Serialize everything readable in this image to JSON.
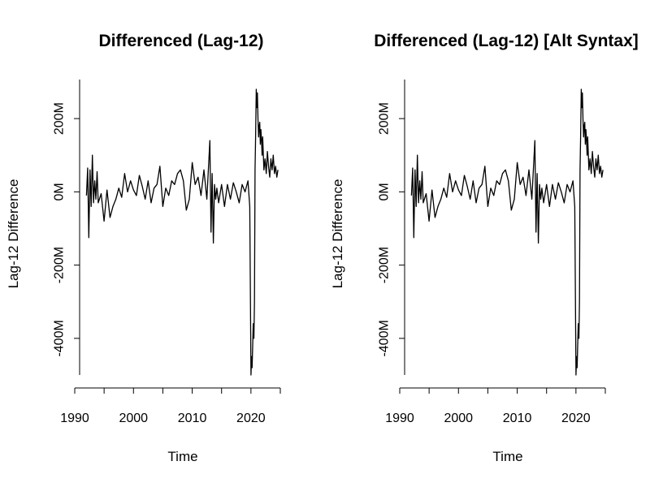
{
  "chart_data": [
    {
      "type": "line",
      "title": "Differenced (Lag-12)",
      "xlabel": "Time",
      "ylabel": "Lag-12 Difference",
      "xlim": [
        1991.8,
        2025.0
      ],
      "ylim": [
        -500000000,
        280000000
      ],
      "xticks": [
        1990,
        1995,
        2000,
        2005,
        2010,
        2015,
        2020,
        2025
      ],
      "xtick_labels": [
        "1990",
        "",
        "2000",
        "",
        "2010",
        "",
        "2020",
        ""
      ],
      "yticks": [
        -400000000,
        -200000000,
        0,
        200000000
      ],
      "ytick_labels": [
        "-400M",
        "-200M",
        "0M",
        "200M"
      ],
      "grid": false,
      "series": [
        {
          "x": [
            1992.0,
            1992.2,
            1992.4,
            1992.6,
            1992.8,
            1993.0,
            1993.2,
            1993.4,
            1993.6,
            1993.8,
            1994.0,
            1994.5,
            1995.0,
            1995.5,
            1996.0,
            1996.5,
            1997.0,
            1997.5,
            1998.0,
            1998.5,
            1999.0,
            1999.5,
            2000.0,
            2000.5,
            2001.0,
            2001.5,
            2002.0,
            2002.5,
            2003.0,
            2003.5,
            2004.0,
            2004.5,
            2005.0,
            2005.5,
            2006.0,
            2006.5,
            2007.0,
            2007.5,
            2008.0,
            2008.5,
            2009.0,
            2009.5,
            2010.0,
            2010.5,
            2011.0,
            2011.5,
            2012.0,
            2012.5,
            2013.0,
            2013.2,
            2013.4,
            2013.6,
            2013.8,
            2014.0,
            2014.2,
            2014.5,
            2015.0,
            2015.5,
            2016.0,
            2016.5,
            2017.0,
            2017.5,
            2018.0,
            2018.5,
            2019.0,
            2019.5,
            2019.8,
            2020.0,
            2020.1,
            2020.2,
            2020.3,
            2020.4,
            2020.5,
            2020.6,
            2020.7,
            2020.8,
            2020.9,
            2021.0,
            2021.1,
            2021.2,
            2021.3,
            2021.4,
            2021.5,
            2021.6,
            2021.7,
            2021.8,
            2021.9,
            2022.0,
            2022.2,
            2022.4,
            2022.6,
            2022.8,
            2023.0,
            2023.2,
            2023.4,
            2023.6,
            2023.8,
            2024.0,
            2024.2,
            2024.4,
            2024.6
          ],
          "y": [
            -10000000,
            65000000,
            -125000000,
            60000000,
            -40000000,
            100000000,
            -30000000,
            30000000,
            -20000000,
            55000000,
            -30000000,
            -5000000,
            -80000000,
            5000000,
            -70000000,
            -40000000,
            -20000000,
            10000000,
            -15000000,
            50000000,
            0,
            30000000,
            5000000,
            -10000000,
            45000000,
            15000000,
            -20000000,
            30000000,
            -30000000,
            10000000,
            20000000,
            70000000,
            -40000000,
            10000000,
            -10000000,
            30000000,
            20000000,
            50000000,
            60000000,
            30000000,
            -50000000,
            -20000000,
            80000000,
            20000000,
            40000000,
            -10000000,
            60000000,
            -20000000,
            140000000,
            -110000000,
            50000000,
            -140000000,
            20000000,
            -20000000,
            10000000,
            -30000000,
            20000000,
            -40000000,
            20000000,
            -20000000,
            25000000,
            0,
            -30000000,
            20000000,
            0,
            30000000,
            -40000000,
            -500000000,
            -450000000,
            -480000000,
            -420000000,
            -360000000,
            -400000000,
            -300000000,
            60000000,
            150000000,
            280000000,
            230000000,
            270000000,
            200000000,
            150000000,
            180000000,
            190000000,
            130000000,
            170000000,
            140000000,
            100000000,
            150000000,
            60000000,
            90000000,
            50000000,
            110000000,
            70000000,
            40000000,
            90000000,
            60000000,
            100000000,
            50000000,
            70000000,
            40000000,
            60000000
          ]
        }
      ]
    },
    {
      "type": "line",
      "title": "Differenced (Lag-12) [Alt Syntax]",
      "xlabel": "Time",
      "ylabel": "Lag-12 Difference",
      "xlim": [
        1991.8,
        2025.0
      ],
      "ylim": [
        -500000000,
        280000000
      ],
      "xticks": [
        1990,
        1995,
        2000,
        2005,
        2010,
        2015,
        2020,
        2025
      ],
      "xtick_labels": [
        "1990",
        "",
        "2000",
        "",
        "2010",
        "",
        "2020",
        ""
      ],
      "yticks": [
        -400000000,
        -200000000,
        0,
        200000000
      ],
      "ytick_labels": [
        "-400M",
        "-200M",
        "0M",
        "200M"
      ],
      "grid": false,
      "series": [
        {
          "x": [
            1992.0,
            1992.2,
            1992.4,
            1992.6,
            1992.8,
            1993.0,
            1993.2,
            1993.4,
            1993.6,
            1993.8,
            1994.0,
            1994.5,
            1995.0,
            1995.5,
            1996.0,
            1996.5,
            1997.0,
            1997.5,
            1998.0,
            1998.5,
            1999.0,
            1999.5,
            2000.0,
            2000.5,
            2001.0,
            2001.5,
            2002.0,
            2002.5,
            2003.0,
            2003.5,
            2004.0,
            2004.5,
            2005.0,
            2005.5,
            2006.0,
            2006.5,
            2007.0,
            2007.5,
            2008.0,
            2008.5,
            2009.0,
            2009.5,
            2010.0,
            2010.5,
            2011.0,
            2011.5,
            2012.0,
            2012.5,
            2013.0,
            2013.2,
            2013.4,
            2013.6,
            2013.8,
            2014.0,
            2014.2,
            2014.5,
            2015.0,
            2015.5,
            2016.0,
            2016.5,
            2017.0,
            2017.5,
            2018.0,
            2018.5,
            2019.0,
            2019.5,
            2019.8,
            2020.0,
            2020.1,
            2020.2,
            2020.3,
            2020.4,
            2020.5,
            2020.6,
            2020.7,
            2020.8,
            2020.9,
            2021.0,
            2021.1,
            2021.2,
            2021.3,
            2021.4,
            2021.5,
            2021.6,
            2021.7,
            2021.8,
            2021.9,
            2022.0,
            2022.2,
            2022.4,
            2022.6,
            2022.8,
            2023.0,
            2023.2,
            2023.4,
            2023.6,
            2023.8,
            2024.0,
            2024.2,
            2024.4,
            2024.6
          ],
          "y": [
            -10000000,
            65000000,
            -125000000,
            60000000,
            -40000000,
            100000000,
            -30000000,
            30000000,
            -20000000,
            55000000,
            -30000000,
            -5000000,
            -80000000,
            5000000,
            -70000000,
            -40000000,
            -20000000,
            10000000,
            -15000000,
            50000000,
            0,
            30000000,
            5000000,
            -10000000,
            45000000,
            15000000,
            -20000000,
            30000000,
            -30000000,
            10000000,
            20000000,
            70000000,
            -40000000,
            10000000,
            -10000000,
            30000000,
            20000000,
            50000000,
            60000000,
            30000000,
            -50000000,
            -20000000,
            80000000,
            20000000,
            40000000,
            -10000000,
            60000000,
            -20000000,
            140000000,
            -110000000,
            50000000,
            -140000000,
            20000000,
            -20000000,
            10000000,
            -30000000,
            20000000,
            -40000000,
            20000000,
            -20000000,
            25000000,
            0,
            -30000000,
            20000000,
            0,
            30000000,
            -40000000,
            -500000000,
            -450000000,
            -480000000,
            -420000000,
            -360000000,
            -400000000,
            -300000000,
            60000000,
            150000000,
            280000000,
            230000000,
            270000000,
            200000000,
            150000000,
            180000000,
            190000000,
            130000000,
            170000000,
            140000000,
            100000000,
            150000000,
            60000000,
            90000000,
            50000000,
            110000000,
            70000000,
            40000000,
            90000000,
            60000000,
            100000000,
            50000000,
            70000000,
            40000000,
            60000000
          ]
        }
      ]
    }
  ]
}
